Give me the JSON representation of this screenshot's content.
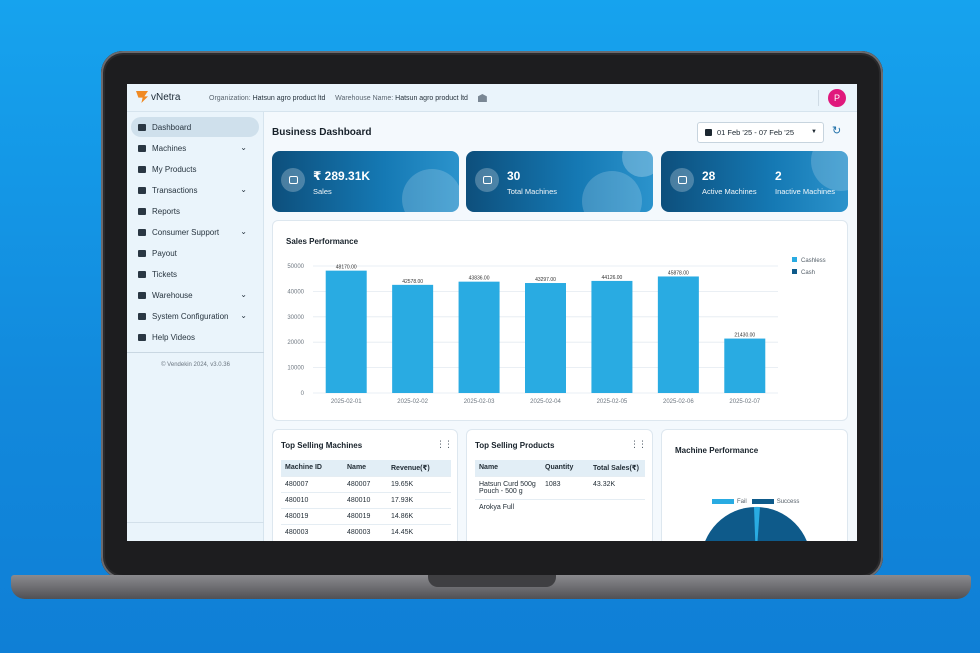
{
  "app": {
    "name": "vNetra"
  },
  "header": {
    "org_label": "Organization:",
    "org_value": "Hatsun agro product ltd",
    "wh_label": "Warehouse Name:",
    "wh_value": "Hatsun agro product ltd",
    "avatar_initial": "P"
  },
  "sidebar": {
    "items": [
      {
        "label": "Dashboard",
        "icon": "dashboard-icon",
        "expandable": false
      },
      {
        "label": "Machines",
        "icon": "machine-icon",
        "expandable": true
      },
      {
        "label": "My Products",
        "icon": "products-icon",
        "expandable": false
      },
      {
        "label": "Transactions",
        "icon": "transactions-icon",
        "expandable": true
      },
      {
        "label": "Reports",
        "icon": "reports-icon",
        "expandable": false
      },
      {
        "label": "Consumer Support",
        "icon": "support-icon",
        "expandable": true
      },
      {
        "label": "Payout",
        "icon": "payout-icon",
        "expandable": false
      },
      {
        "label": "Tickets",
        "icon": "tickets-icon",
        "expandable": false
      },
      {
        "label": "Warehouse",
        "icon": "warehouse-icon",
        "expandable": true
      },
      {
        "label": "System Configuration",
        "icon": "config-icon",
        "expandable": true
      },
      {
        "label": "Help Videos",
        "icon": "video-icon",
        "expandable": false
      }
    ],
    "version": "© Vendekin 2024, v3.0.36"
  },
  "main": {
    "title": "Business Dashboard",
    "date_range": "01 Feb '25 - 07 Feb '25",
    "kpis": {
      "sales_value": "₹ 289.31K",
      "sales_label": "Sales",
      "total_machines_value": "30",
      "total_machines_label": "Total Machines",
      "active_value": "28",
      "active_label": "Active Machines",
      "inactive_value": "2",
      "inactive_label": "Inactive Machines"
    },
    "sales_title": "Sales Performance",
    "top_machines": {
      "title": "Top Selling Machines",
      "headers": [
        "Machine ID",
        "Name",
        "Revenue(₹)"
      ],
      "rows": [
        [
          "480007",
          "480007",
          "19.65K"
        ],
        [
          "480010",
          "480010",
          "17.93K"
        ],
        [
          "480019",
          "480019",
          "14.86K"
        ],
        [
          "480003",
          "480003",
          "14.45K"
        ]
      ]
    },
    "top_products": {
      "title": "Top Selling Products",
      "headers": [
        "Name",
        "Quantity",
        "Total Sales(₹)"
      ],
      "rows": [
        [
          "Hatsun Curd 500g Pouch - 500 g",
          "1083",
          "43.32K"
        ],
        [
          "Arokya Full",
          "",
          ""
        ]
      ]
    },
    "machine_perf": {
      "title": "Machine Performance",
      "legend_fail": "Fail",
      "legend_success": "Success"
    }
  },
  "colors": {
    "accent": "#1e6fa8",
    "cashless": "#29abe2",
    "cash": "#0e5a8a",
    "avatar": "#e0187c"
  },
  "chart_data": {
    "type": "bar",
    "title": "Sales Performance",
    "categories": [
      "2025-02-01",
      "2025-02-02",
      "2025-02-03",
      "2025-02-04",
      "2025-02-05",
      "2025-02-06",
      "2025-02-07"
    ],
    "series": [
      {
        "name": "Cashless",
        "values": [
          48170.0,
          42578.0,
          43836.0,
          43297.0,
          44126.0,
          45878.0,
          21430.0
        ]
      },
      {
        "name": "Cash",
        "values": [
          0,
          0,
          0,
          0,
          0,
          0,
          0
        ]
      }
    ],
    "data_labels": [
      "48170.00",
      "42578.00",
      "43836.00",
      "43297.00",
      "44126.00",
      "45878.00",
      "21430.00"
    ],
    "yticks": [
      "0",
      "10000",
      "20000",
      "30000",
      "40000",
      "50000"
    ],
    "ylim": [
      0,
      50000
    ],
    "legend": "top-right",
    "grid": true
  }
}
